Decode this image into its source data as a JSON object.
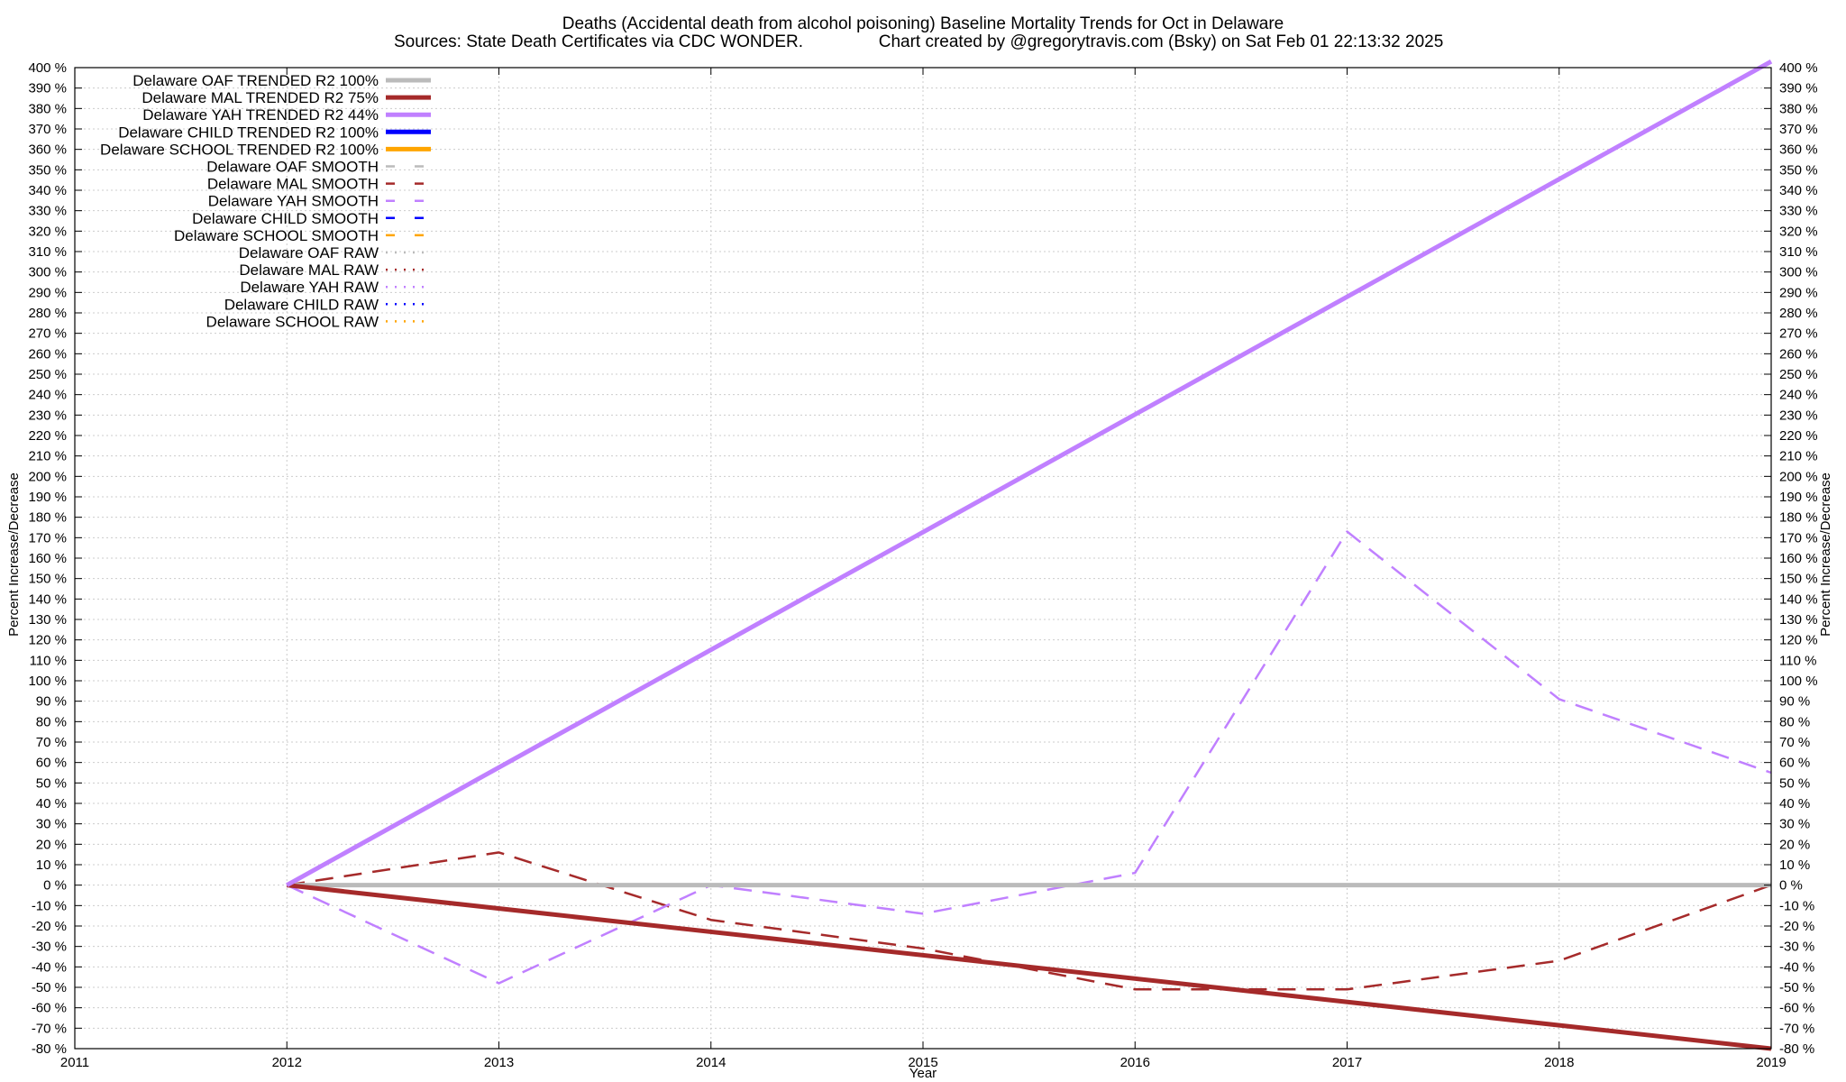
{
  "chart_data": {
    "type": "line",
    "title": "Deaths (Accidental death from alcohol poisoning)  Baseline Mortality Trends for Oct in Delaware",
    "subtitle_left": "Sources: State Death Certificates via CDC WONDER.",
    "subtitle_right": "Chart created by @gregorytravis.com (Bsky) on Sat Feb 01 22:13:32 2025",
    "xlabel": "Year",
    "ylabel": "Percent Increase/Decrease",
    "xlim": [
      2011,
      2019
    ],
    "ylim": [
      -80,
      400
    ],
    "y_step": 10,
    "x_ticks": [
      "2011",
      "2012",
      "2013",
      "2014",
      "2015",
      "2016",
      "2017",
      "2018",
      "2019"
    ],
    "y_tick_suffix": " %",
    "grid": true,
    "legend_position": "top-left",
    "series": [
      {
        "name": "Delaware OAF TRENDED R2 100%",
        "style": "solid",
        "color": "#bbbbbb",
        "x": [
          2012,
          2019
        ],
        "values": [
          0,
          0
        ]
      },
      {
        "name": "Delaware MAL TRENDED R2  75%",
        "style": "solid",
        "color": "#a52a2a",
        "x": [
          2012,
          2019
        ],
        "values": [
          0,
          -80
        ]
      },
      {
        "name": "Delaware YAH TRENDED R2  44%",
        "style": "solid",
        "color": "#c080ff",
        "x": [
          2012,
          2019
        ],
        "values": [
          0,
          403
        ]
      },
      {
        "name": "Delaware CHILD TRENDED R2 100%",
        "style": "solid",
        "color": "#0000ff",
        "x": [],
        "values": []
      },
      {
        "name": "Delaware SCHOOL TRENDED R2 100%",
        "style": "solid",
        "color": "#ffa500",
        "x": [],
        "values": []
      },
      {
        "name": "Delaware OAF SMOOTH",
        "style": "dashed",
        "color": "#bbbbbb",
        "x": [],
        "values": []
      },
      {
        "name": "Delaware MAL SMOOTH",
        "style": "dashed",
        "color": "#a52a2a",
        "x": [
          2012,
          2013,
          2014,
          2015,
          2016,
          2017,
          2018,
          2019
        ],
        "values": [
          0,
          16,
          -17,
          -31,
          -51,
          -51,
          -37,
          0
        ]
      },
      {
        "name": "Delaware YAH SMOOTH",
        "style": "dashed",
        "color": "#c080ff",
        "x": [
          2012,
          2013,
          2014,
          2015,
          2016,
          2017,
          2018,
          2019
        ],
        "values": [
          0,
          -48,
          0,
          -14,
          6,
          173,
          91,
          55
        ]
      },
      {
        "name": "Delaware CHILD SMOOTH",
        "style": "dashed",
        "color": "#0000ff",
        "x": [],
        "values": []
      },
      {
        "name": "Delaware SCHOOL SMOOTH",
        "style": "dashed",
        "color": "#ffa500",
        "x": [],
        "values": []
      },
      {
        "name": "Delaware OAF RAW",
        "style": "dotted",
        "color": "#bbbbbb",
        "x": [],
        "values": []
      },
      {
        "name": "Delaware MAL RAW",
        "style": "dotted",
        "color": "#a52a2a",
        "x": [],
        "values": []
      },
      {
        "name": "Delaware YAH RAW",
        "style": "dotted",
        "color": "#c080ff",
        "x": [],
        "values": []
      },
      {
        "name": "Delaware CHILD RAW",
        "style": "dotted",
        "color": "#0000ff",
        "x": [],
        "values": []
      },
      {
        "name": "Delaware SCHOOL RAW",
        "style": "dotted",
        "color": "#ffa500",
        "x": [],
        "values": []
      }
    ]
  }
}
